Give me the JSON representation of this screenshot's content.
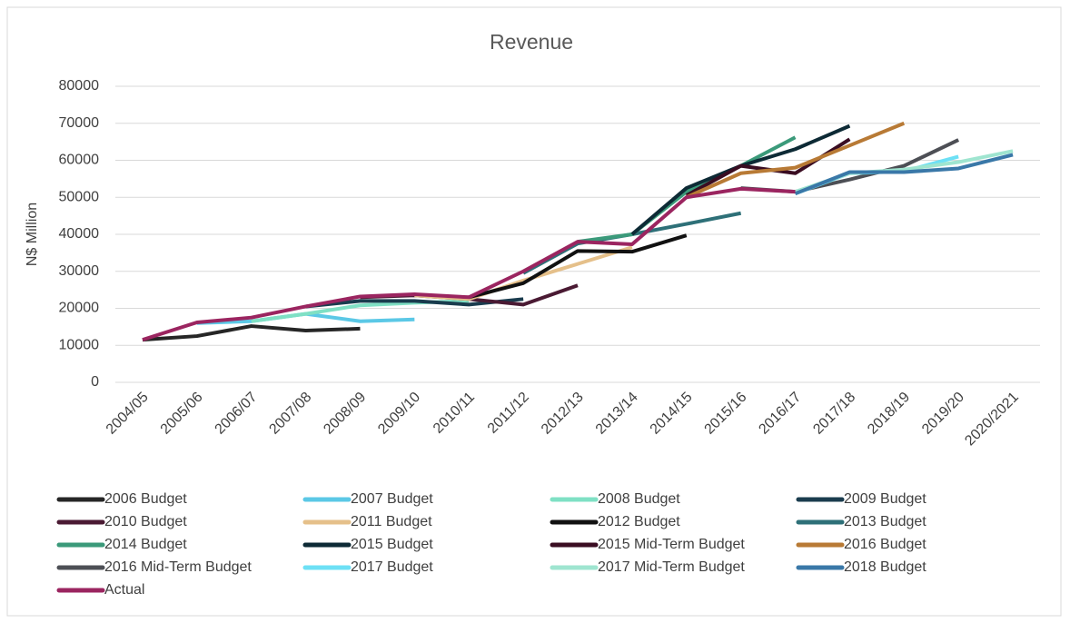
{
  "chart_data": {
    "type": "line",
    "title": "Revenue",
    "y_label": "N$ Million",
    "legend": "bottom",
    "grid": true,
    "categories": [
      "2004/05",
      "2005/06",
      "2006/07",
      "2007/08",
      "2008/09",
      "2009/10",
      "2010/11",
      "2011/12",
      "2012/13",
      "2013/14",
      "2014/15",
      "2015/16",
      "2016/17",
      "2017/18",
      "2018/19",
      "2019/20",
      "2020/2021"
    ],
    "ylim": [
      0,
      80000
    ],
    "yticks": [
      0,
      10000,
      20000,
      30000,
      40000,
      50000,
      60000,
      70000,
      80000
    ],
    "series": [
      {
        "name": "2006 Budget",
        "color": "#262626",
        "values": [
          11500,
          12500,
          15200,
          14000,
          14500,
          null,
          null,
          null,
          null,
          null,
          null,
          null,
          null,
          null,
          null,
          null,
          null
        ]
      },
      {
        "name": "2007 Budget",
        "color": "#5bc8e6",
        "values": [
          null,
          16000,
          16500,
          18500,
          16500,
          17000,
          null,
          null,
          null,
          null,
          null,
          null,
          null,
          null,
          null,
          null,
          null
        ]
      },
      {
        "name": "2008 Budget",
        "color": "#7fe0c4",
        "values": [
          null,
          null,
          16500,
          18500,
          20800,
          21500,
          22000,
          null,
          null,
          null,
          null,
          null,
          null,
          null,
          null,
          null,
          null
        ]
      },
      {
        "name": "2009 Budget",
        "color": "#1a3c4e",
        "values": [
          null,
          null,
          null,
          20500,
          22000,
          22000,
          21000,
          22500,
          null,
          null,
          null,
          null,
          null,
          null,
          null,
          null,
          null
        ]
      },
      {
        "name": "2010 Budget",
        "color": "#4a1a33",
        "values": [
          null,
          null,
          null,
          null,
          23000,
          23500,
          22500,
          21000,
          26200,
          null,
          null,
          null,
          null,
          null,
          null,
          null,
          null
        ]
      },
      {
        "name": "2011 Budget",
        "color": "#e5c08a",
        "values": [
          null,
          null,
          null,
          null,
          null,
          23500,
          22500,
          27500,
          32000,
          36500,
          null,
          null,
          null,
          null,
          null,
          null,
          null
        ]
      },
      {
        "name": "2012 Budget",
        "color": "#111111",
        "values": [
          null,
          null,
          null,
          null,
          null,
          null,
          23000,
          26800,
          35500,
          35300,
          39700,
          null,
          null,
          null,
          null,
          null,
          null
        ]
      },
      {
        "name": "2013 Budget",
        "color": "#2e7078",
        "values": [
          null,
          null,
          null,
          null,
          null,
          null,
          null,
          29500,
          37500,
          40000,
          42800,
          45700,
          null,
          null,
          null,
          null,
          null
        ]
      },
      {
        "name": "2014 Budget",
        "color": "#3b9a7a",
        "values": [
          null,
          null,
          null,
          null,
          null,
          null,
          null,
          null,
          38000,
          40000,
          51500,
          58500,
          66200,
          null,
          null,
          null,
          null
        ]
      },
      {
        "name": "2015 Budget",
        "color": "#0d2a35",
        "values": [
          null,
          null,
          null,
          null,
          null,
          null,
          null,
          null,
          null,
          40000,
          52500,
          58500,
          63000,
          69300,
          null,
          null,
          null
        ]
      },
      {
        "name": "2015 Mid-Term Budget",
        "color": "#3a0d22",
        "values": [
          null,
          null,
          null,
          null,
          null,
          null,
          null,
          null,
          null,
          null,
          50500,
          58500,
          56500,
          65700,
          null,
          null,
          null
        ]
      },
      {
        "name": "2016 Budget",
        "color": "#b87a35",
        "values": [
          null,
          null,
          null,
          null,
          null,
          null,
          null,
          null,
          null,
          null,
          50000,
          56500,
          58000,
          64000,
          70000,
          null,
          null
        ]
      },
      {
        "name": "2016 Mid-Term Budget",
        "color": "#4d4f55",
        "values": [
          null,
          null,
          null,
          null,
          null,
          null,
          null,
          null,
          null,
          null,
          null,
          52500,
          51500,
          54800,
          58500,
          65500,
          null
        ]
      },
      {
        "name": "2017 Budget",
        "color": "#6de0f5",
        "values": [
          null,
          null,
          null,
          null,
          null,
          null,
          null,
          null,
          null,
          null,
          null,
          null,
          51000,
          56500,
          57000,
          61000,
          null
        ]
      },
      {
        "name": "2017 Mid-Term Budget",
        "color": "#9fe5d0",
        "values": [
          null,
          null,
          null,
          null,
          null,
          null,
          null,
          null,
          null,
          null,
          null,
          null,
          51500,
          56500,
          57500,
          59500,
          62500
        ]
      },
      {
        "name": "2018 Budget",
        "color": "#3a78a8",
        "values": [
          null,
          null,
          null,
          null,
          null,
          null,
          null,
          null,
          null,
          null,
          null,
          null,
          51000,
          56800,
          56800,
          57800,
          61500
        ]
      },
      {
        "name": "Actual",
        "color": "#9b2560",
        "values": [
          11500,
          16200,
          17500,
          20500,
          23200,
          23800,
          23000,
          30000,
          38000,
          37300,
          50000,
          52300,
          51500,
          null,
          null,
          null,
          null
        ]
      }
    ]
  }
}
